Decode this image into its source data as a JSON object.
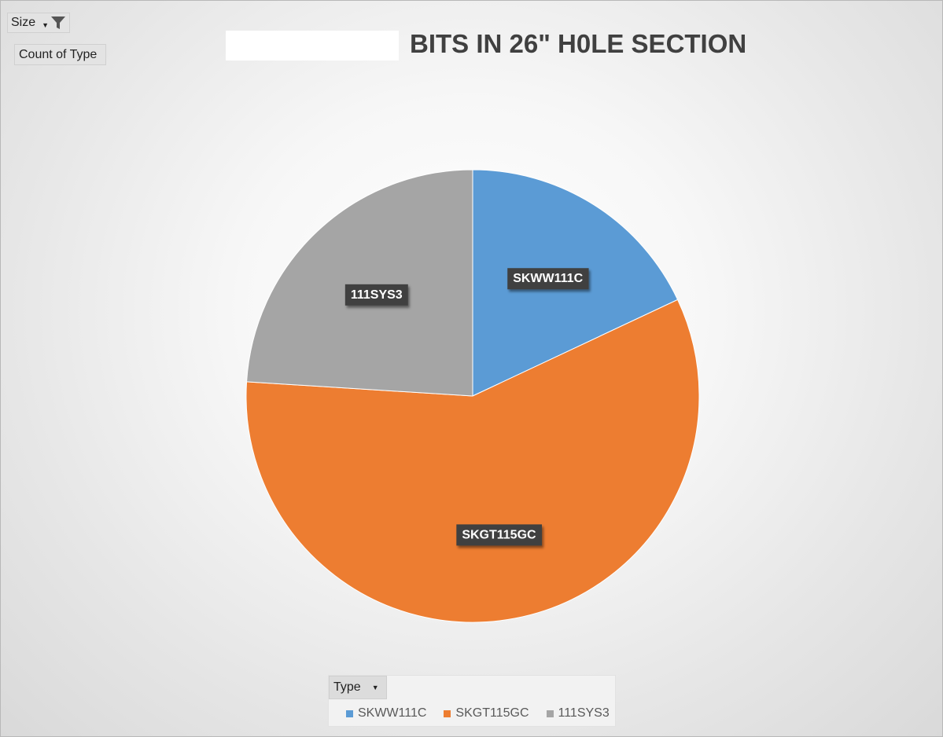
{
  "filters": {
    "size_label": "Size",
    "count_label": "Count of Type",
    "type_label": "Type"
  },
  "chart_data": {
    "type": "pie",
    "title": "BITS IN 26\" H0LE SECTION",
    "categories": [
      "SKWW111C",
      "SKGT115GC",
      "111SYS3"
    ],
    "values": [
      18,
      58,
      24
    ],
    "colors": [
      "#5B9BD5",
      "#ED7D31",
      "#A5A5A5"
    ],
    "data_labels": [
      "SKWW111C",
      "SKGT115GC",
      "111SYS3"
    ],
    "legend_position": "bottom"
  }
}
